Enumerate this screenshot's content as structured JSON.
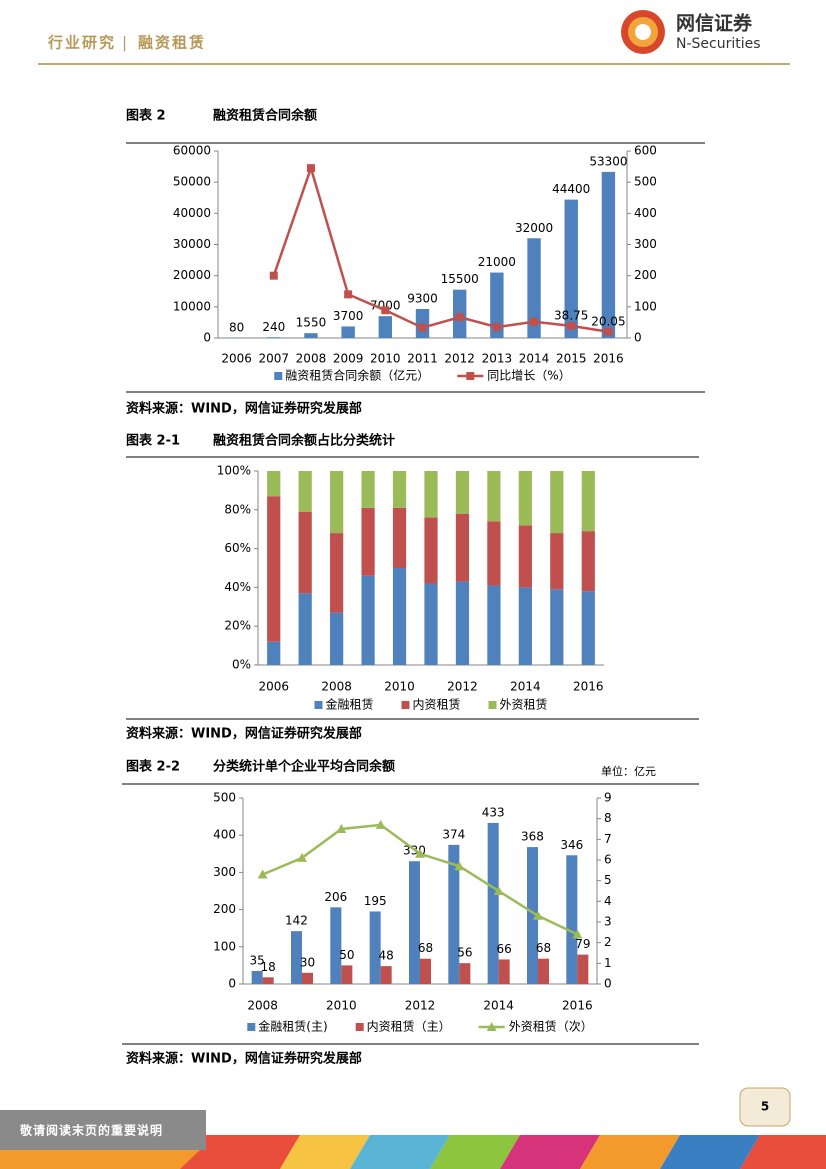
{
  "header": {
    "section": "行业研究",
    "subsection": "融资租赁",
    "logo_cn": "网信证券",
    "logo_en": "N-Securities"
  },
  "footer": {
    "note": "敬请阅读末页的重要说明",
    "page": "5"
  },
  "chart_data": [
    {
      "type": "bar",
      "label": "图表 2",
      "title": "融资租赁合同余额",
      "source": "资料来源：WIND，网信证券研究发展部",
      "categories": [
        "2006",
        "2007",
        "2008",
        "2009",
        "2010",
        "2011",
        "2012",
        "2013",
        "2014",
        "2015",
        "2016"
      ],
      "series": [
        {
          "name": "融资租赁合同余额（亿元）",
          "type": "bar",
          "color": "#4f81bd",
          "values": [
            80,
            240,
            1550,
            3700,
            7000,
            9300,
            15500,
            21000,
            32000,
            44400,
            53300
          ]
        },
        {
          "name": "同比增长（%）",
          "type": "line",
          "axis": "y2",
          "marker": "square",
          "color": "#c0504d",
          "values": [
            null,
            200,
            545,
            140,
            89,
            33,
            67,
            35,
            52,
            38.75,
            20.05
          ],
          "value_labels": [
            null,
            null,
            null,
            null,
            null,
            null,
            null,
            null,
            null,
            "38.75",
            "20.05"
          ]
        }
      ],
      "ylim": [
        0,
        60000
      ],
      "yticks": [
        0,
        10000,
        20000,
        30000,
        40000,
        50000,
        60000
      ],
      "y2lim": [
        0,
        600
      ],
      "y2ticks": [
        0,
        100,
        200,
        300,
        400,
        500,
        600
      ],
      "bar_labels": true
    },
    {
      "type": "stacked_bar",
      "label": "图表 2-1",
      "title": "融资租赁合同余额占比分类统计",
      "source": "资料来源：WIND，网信证券研究发展部",
      "categories": [
        "2006",
        null,
        "2008",
        null,
        "2010",
        null,
        "2012",
        null,
        "2014",
        null,
        "2016"
      ],
      "series": [
        {
          "name": "金融租赁",
          "color": "#4f81bd",
          "values": [
            12,
            37,
            27,
            46,
            50,
            42,
            43,
            41,
            40,
            39,
            38
          ]
        },
        {
          "name": "内资租赁",
          "color": "#c0504d",
          "values": [
            75,
            42,
            41,
            35,
            31,
            34,
            35,
            33,
            32,
            29,
            31
          ]
        },
        {
          "name": "外资租赁",
          "color": "#9bbb59",
          "values": [
            13,
            21,
            32,
            19,
            19,
            24,
            22,
            26,
            28,
            32,
            31
          ]
        }
      ],
      "ylim": [
        0,
        100
      ],
      "yticks": [
        {
          "value": 0,
          "label": "0%"
        },
        {
          "value": 20,
          "label": "20%"
        },
        {
          "value": 40,
          "label": "40%"
        },
        {
          "value": 60,
          "label": "60%"
        },
        {
          "value": 80,
          "label": "80%"
        },
        {
          "value": 100,
          "label": "100%"
        }
      ]
    },
    {
      "type": "bar",
      "label": "图表 2-2",
      "title": "分类统计单个企业平均合同余额",
      "unit": "单位：亿元",
      "source": "资料来源：WIND，网信证券研究发展部",
      "categories": [
        "2008",
        null,
        "2010",
        null,
        "2012",
        null,
        "2014",
        null,
        "2016"
      ],
      "series": [
        {
          "name": "金融租赁(主)",
          "type": "bar",
          "color": "#4f81bd",
          "values": [
            35,
            142,
            206,
            195,
            330,
            374,
            433,
            368,
            346
          ]
        },
        {
          "name": "内资租赁（主）",
          "type": "bar",
          "color": "#c0504d",
          "values": [
            18,
            30,
            50,
            48,
            68,
            56,
            66,
            68,
            79
          ]
        },
        {
          "name": "外资租赁（次）",
          "type": "line",
          "axis": "y2",
          "marker": "triangle",
          "color": "#9bbb59",
          "values": [
            5.3,
            6.1,
            7.5,
            7.7,
            6.3,
            5.7,
            4.5,
            3.3,
            2.4
          ]
        }
      ],
      "ylim": [
        0,
        500
      ],
      "yticks": [
        0,
        100,
        200,
        300,
        400,
        500
      ],
      "y2lim": [
        0,
        9
      ],
      "y2ticks": [
        0,
        1,
        2,
        3,
        4,
        5,
        6,
        7,
        8,
        9
      ],
      "bar_labels": true
    }
  ]
}
